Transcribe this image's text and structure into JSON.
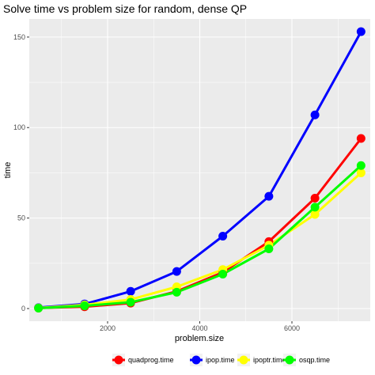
{
  "chart_data": {
    "type": "line",
    "title": "Solve time vs problem size for random, dense QP",
    "xlabel": "problem.size",
    "ylabel": "time",
    "x": [
      500,
      1500,
      2500,
      3500,
      4500,
      5500,
      6500,
      7500
    ],
    "xlim": [
      300,
      7700
    ],
    "ylim": [
      -7,
      160
    ],
    "xticks": [
      2000,
      4000,
      6000
    ],
    "yticks": [
      0,
      50,
      100,
      150
    ],
    "grid": true,
    "legend_position": "bottom",
    "series": [
      {
        "name": "quadprog.time",
        "color": "#ff0000",
        "values": [
          0.3,
          1.0,
          3.0,
          9.5,
          20.0,
          37.0,
          61.0,
          94.0
        ]
      },
      {
        "name": "ipop.time",
        "color": "#0000ff",
        "values": [
          0.5,
          2.5,
          9.5,
          20.5,
          40.0,
          62.0,
          107.0,
          153.0
        ]
      },
      {
        "name": "ipoptr.time",
        "color": "#ffff00",
        "values": [
          0.3,
          2.0,
          5.0,
          12.0,
          21.5,
          35.0,
          52.0,
          75.0
        ]
      },
      {
        "name": "osqp.time",
        "color": "#00ff00",
        "values": [
          0.2,
          1.5,
          3.5,
          9.0,
          19.0,
          33.0,
          56.0,
          79.0
        ]
      }
    ]
  }
}
